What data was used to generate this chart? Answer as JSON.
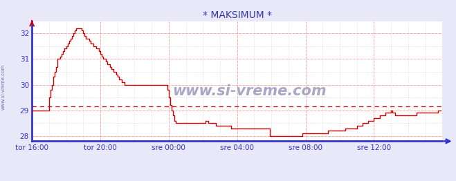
{
  "title": "* MAKSIMUM *",
  "watermark": "www.si-vreme.com",
  "xlim": [
    0,
    288
  ],
  "ylim": [
    27.8,
    32.45
  ],
  "yticks": [
    28,
    29,
    30,
    31,
    32
  ],
  "xtick_labels": [
    "tor 16:00",
    "tor 20:00",
    "sre 00:00",
    "sre 04:00",
    "sre 08:00",
    "sre 12:00"
  ],
  "xtick_positions": [
    0,
    48,
    96,
    144,
    192,
    240
  ],
  "avg_line_y": 29.15,
  "bg_color": "#e8e8f8",
  "plot_bg_color": "#ffffff",
  "line_color": "#cc0000",
  "grid_color_major": "#ffaaaa",
  "grid_color_minor": "#ccccdd",
  "axis_color": "#3333cc",
  "title_color": "#3333aa",
  "watermark_color": "#9999bb",
  "legend_box_color": "#cc0000",
  "sidewater_color": "#6666aa",
  "temperature_data": [
    29.0,
    29.0,
    29.0,
    29.0,
    29.0,
    29.0,
    29.0,
    29.0,
    29.0,
    29.0,
    29.0,
    29.0,
    29.5,
    29.8,
    30.0,
    30.3,
    30.5,
    30.7,
    31.0,
    31.0,
    31.1,
    31.2,
    31.3,
    31.4,
    31.5,
    31.6,
    31.7,
    31.8,
    31.9,
    32.0,
    32.1,
    32.2,
    32.2,
    32.2,
    32.2,
    32.1,
    32.0,
    31.9,
    31.8,
    31.8,
    31.7,
    31.6,
    31.6,
    31.5,
    31.5,
    31.4,
    31.4,
    31.3,
    31.2,
    31.1,
    31.0,
    31.0,
    30.9,
    30.8,
    30.8,
    30.7,
    30.6,
    30.5,
    30.5,
    30.4,
    30.3,
    30.2,
    30.2,
    30.1,
    30.1,
    30.0,
    30.0,
    30.0,
    30.0,
    30.0,
    30.0,
    30.0,
    30.0,
    30.0,
    30.0,
    30.0,
    30.0,
    30.0,
    30.0,
    30.0,
    30.0,
    30.0,
    30.0,
    30.0,
    30.0,
    30.0,
    30.0,
    30.0,
    30.0,
    30.0,
    30.0,
    30.0,
    30.0,
    30.0,
    30.0,
    29.8,
    29.5,
    29.2,
    29.0,
    28.8,
    28.6,
    28.5,
    28.5,
    28.5,
    28.5,
    28.5,
    28.5,
    28.5,
    28.5,
    28.5,
    28.5,
    28.5,
    28.5,
    28.5,
    28.5,
    28.5,
    28.5,
    28.5,
    28.5,
    28.5,
    28.5,
    28.5,
    28.6,
    28.6,
    28.5,
    28.5,
    28.5,
    28.5,
    28.5,
    28.4,
    28.4,
    28.4,
    28.4,
    28.4,
    28.4,
    28.4,
    28.4,
    28.4,
    28.4,
    28.4,
    28.3,
    28.3,
    28.3,
    28.3,
    28.3,
    28.3,
    28.3,
    28.3,
    28.3,
    28.3,
    28.3,
    28.3,
    28.3,
    28.3,
    28.3,
    28.3,
    28.3,
    28.3,
    28.3,
    28.3,
    28.3,
    28.3,
    28.3,
    28.3,
    28.3,
    28.3,
    28.3,
    28.0,
    28.0,
    28.0,
    28.0,
    28.0,
    28.0,
    28.0,
    28.0,
    28.0,
    28.0,
    28.0,
    28.0,
    28.0,
    28.0,
    28.0,
    28.0,
    28.0,
    28.0,
    28.0,
    28.0,
    28.0,
    28.0,
    28.0,
    28.1,
    28.1,
    28.1,
    28.1,
    28.1,
    28.1,
    28.1,
    28.1,
    28.1,
    28.1,
    28.1,
    28.1,
    28.1,
    28.1,
    28.1,
    28.1,
    28.1,
    28.1,
    28.2,
    28.2,
    28.2,
    28.2,
    28.2,
    28.2,
    28.2,
    28.2,
    28.2,
    28.2,
    28.2,
    28.2,
    28.3,
    28.3,
    28.3,
    28.3,
    28.3,
    28.3,
    28.3,
    28.3,
    28.4,
    28.4,
    28.4,
    28.4,
    28.5,
    28.5,
    28.5,
    28.5,
    28.6,
    28.6,
    28.6,
    28.6,
    28.7,
    28.7,
    28.7,
    28.7,
    28.8,
    28.8,
    28.8,
    28.8,
    28.9,
    28.9,
    28.9,
    28.9,
    29.0,
    28.9,
    28.9,
    28.8,
    28.8,
    28.8,
    28.8,
    28.8,
    28.8,
    28.8,
    28.8,
    28.8,
    28.8,
    28.8,
    28.8,
    28.8,
    28.8,
    28.8,
    28.9,
    28.9,
    28.9,
    28.9,
    28.9,
    28.9,
    28.9,
    28.9,
    28.9,
    28.9,
    28.9,
    28.9,
    28.9,
    28.9,
    28.9,
    29.0,
    29.0,
    29.0
  ]
}
